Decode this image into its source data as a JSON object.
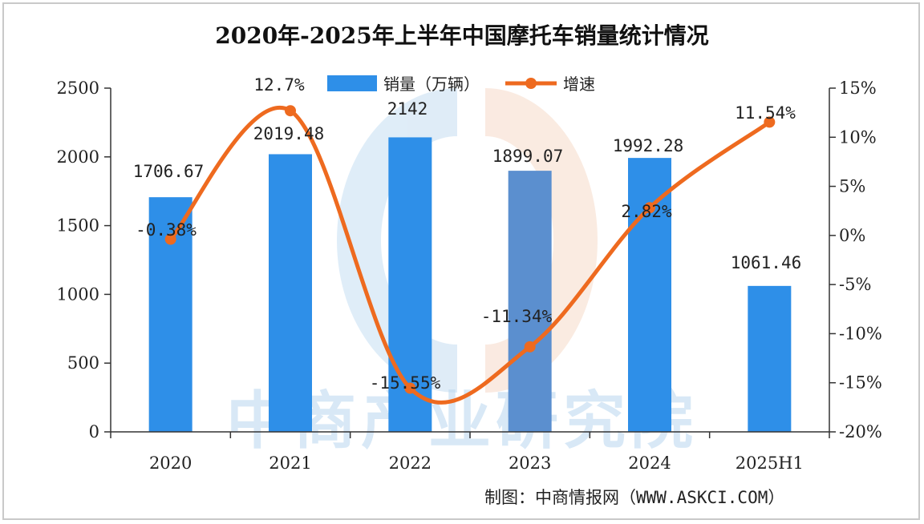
{
  "chart_data": {
    "type": "bar",
    "title": "2020年-2025年上半年中国摩托车销量统计情况",
    "categories": [
      "2020",
      "2021",
      "2022",
      "2023",
      "2024",
      "2025H1"
    ],
    "series": [
      {
        "name": "销量（万辆）",
        "type": "bar",
        "axis": "left",
        "values": [
          1706.67,
          2019.48,
          2142,
          1899.07,
          1992.28,
          1061.46
        ],
        "labels": [
          "1706.67",
          "2019.48",
          "2142",
          "1899.07",
          "1992.28",
          "1061.46"
        ],
        "color": "#2e8fe8"
      },
      {
        "name": "增速",
        "type": "line",
        "axis": "right",
        "values": [
          -0.38,
          12.7,
          -15.55,
          -11.34,
          2.82,
          11.54
        ],
        "labels": [
          "-0.38%",
          "12.7%",
          "-15.55%",
          "-11.34%",
          "2.82%",
          "11.54%"
        ],
        "color": "#ee6a1f"
      }
    ],
    "y_left": {
      "ylim": [
        0,
        2500
      ],
      "ticks": [
        "0",
        "500",
        "1000",
        "1500",
        "2000",
        "2500"
      ]
    },
    "y_right": {
      "ylim": [
        -20,
        15
      ],
      "ticks": [
        "-20%",
        "-15%",
        "-10%",
        "-5%",
        "0%",
        "5%",
        "10%",
        "15%"
      ]
    },
    "grid": false,
    "legend": "top"
  },
  "watermark": "中商产业研究院",
  "source": "制图：中商情报网（WWW.ASKCI.COM）",
  "colors": {
    "bar_highlight": "#5b8fcf",
    "watermark": "#b9d7ef",
    "watermark_logo_orange": "#f5d2bd"
  }
}
